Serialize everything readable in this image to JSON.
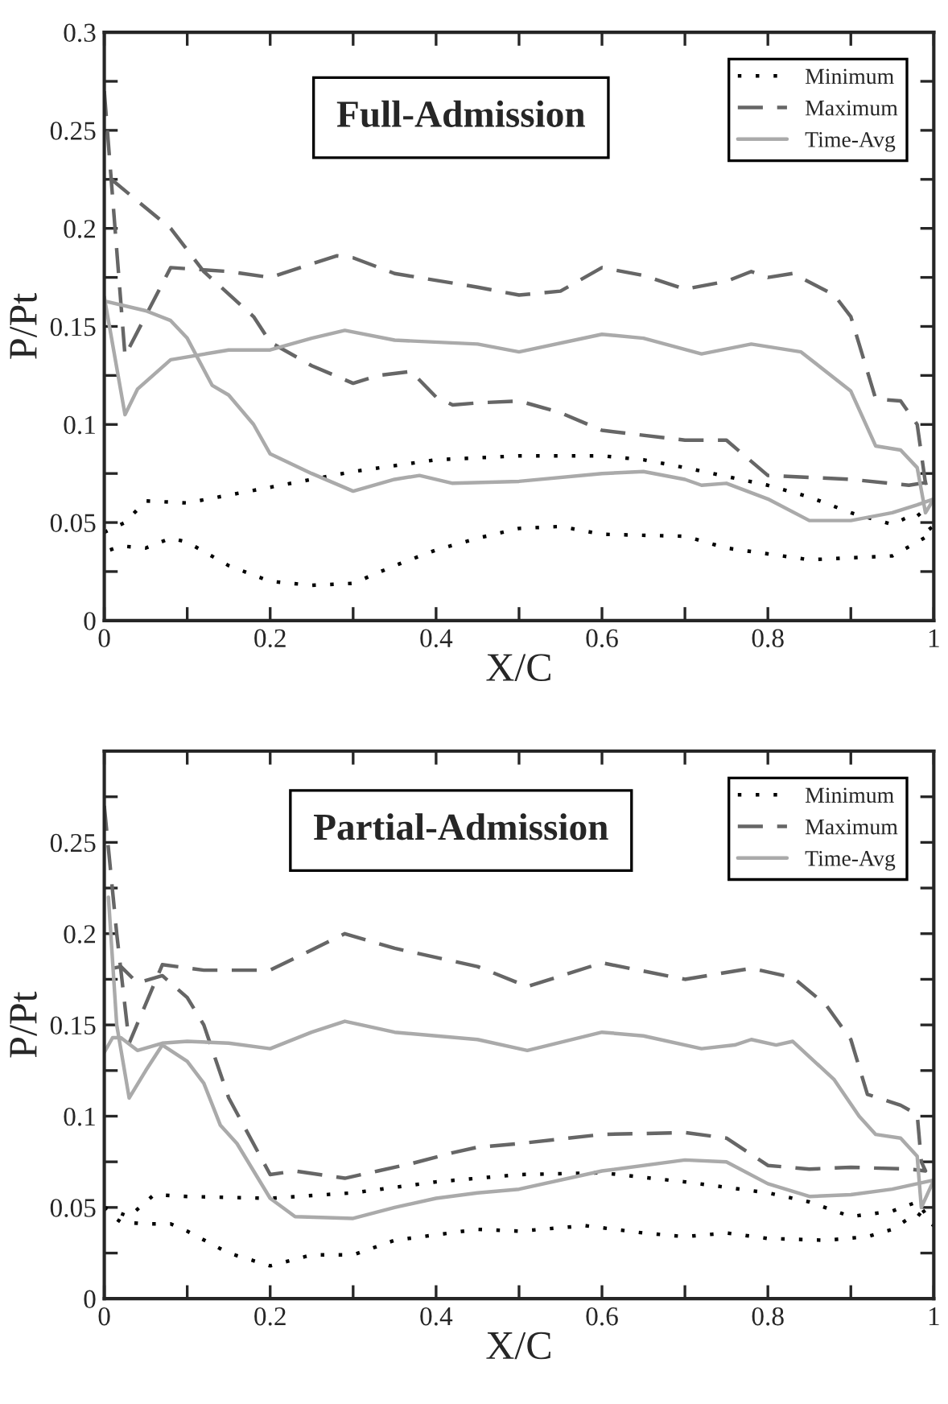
{
  "chart_data": [
    {
      "type": "line",
      "annotations": [
        "Full-Admission"
      ],
      "xlabel": "X/C",
      "ylabel": "P/Pt",
      "legend": "top right",
      "marker": "none",
      "grid": false,
      "xlim": [
        0,
        1
      ],
      "xticks": [
        0,
        {
          "value": 0.1,
          "label": null
        },
        0.2,
        {
          "value": 0.3,
          "label": null
        },
        0.4,
        {
          "value": 0.5,
          "label": null
        },
        0.6,
        {
          "value": 0.7,
          "label": null
        },
        0.8,
        {
          "value": 0.9,
          "label": null
        },
        1
      ],
      "ylim": [
        0,
        0.3
      ],
      "yticks": [
        0,
        {
          "value": 0.025,
          "label": null
        },
        0.05,
        {
          "value": 0.075,
          "label": null
        },
        0.1,
        {
          "value": 0.125,
          "label": null
        },
        0.15,
        {
          "value": 0.175,
          "label": null
        },
        0.2,
        {
          "value": 0.225,
          "label": null
        },
        0.25,
        {
          "value": 0.275,
          "label": null
        },
        0.3
      ],
      "series": [
        {
          "name": "Minimum",
          "color": "#000000",
          "line_style": "dotted",
          "x": [
            0,
            0.025,
            0.05,
            0.1,
            0.2,
            0.3,
            0.4,
            0.5,
            0.6,
            0.65,
            0.7,
            0.8,
            0.85,
            0.9,
            0.95,
            0.98,
            1,
            0.98,
            0.95,
            0.9,
            0.85,
            0.8,
            0.75,
            0.7,
            0.6,
            0.55,
            0.5,
            0.45,
            0.4,
            0.35,
            0.3,
            0.25,
            0.2,
            0.15,
            0.1,
            0.08,
            0.05,
            0.02,
            0
          ],
          "values": [
            0.045,
            0.05,
            0.061,
            0.06,
            0.068,
            0.076,
            0.082,
            0.084,
            0.084,
            0.082,
            0.078,
            0.069,
            0.063,
            0.055,
            0.049,
            0.055,
            0.045,
            0.04,
            0.033,
            0.032,
            0.031,
            0.034,
            0.037,
            0.043,
            0.044,
            0.048,
            0.047,
            0.042,
            0.036,
            0.028,
            0.019,
            0.018,
            0.02,
            0.028,
            0.04,
            0.042,
            0.037,
            0.038,
            0.035
          ]
        },
        {
          "name": "Maximum",
          "color": "#666666",
          "line_style": "dashed",
          "x": [
            0,
            0.025,
            0.08,
            0.15,
            0.2,
            0.28,
            0.3,
            0.35,
            0.45,
            0.5,
            0.55,
            0.6,
            0.65,
            0.7,
            0.75,
            0.78,
            0.8,
            0.83,
            0.88,
            0.9,
            0.93,
            0.96,
            0.98,
            0.99,
            1,
            0.97,
            0.9,
            0.8,
            0.75,
            0.7,
            0.6,
            0.55,
            0.5,
            0.45,
            0.42,
            0.4,
            0.37,
            0.33,
            0.3,
            0.25,
            0.2,
            0.18,
            0.12,
            0.08,
            0
          ],
          "values": [
            0.27,
            0.135,
            0.18,
            0.178,
            0.175,
            0.186,
            0.185,
            0.177,
            0.17,
            0.166,
            0.168,
            0.18,
            0.176,
            0.169,
            0.173,
            0.178,
            0.175,
            0.177,
            0.166,
            0.155,
            0.113,
            0.112,
            0.1,
            0.07,
            0.071,
            0.069,
            0.072,
            0.074,
            0.092,
            0.092,
            0.097,
            0.106,
            0.112,
            0.111,
            0.11,
            0.114,
            0.127,
            0.125,
            0.121,
            0.13,
            0.142,
            0.155,
            0.178,
            0.2,
            0.228
          ]
        },
        {
          "name": "Time-Avg",
          "color": "#aaaaaa",
          "line_style": "solid",
          "x": [
            0,
            0.025,
            0.04,
            0.08,
            0.15,
            0.2,
            0.25,
            0.29,
            0.35,
            0.45,
            0.5,
            0.6,
            0.65,
            0.72,
            0.78,
            0.84,
            0.9,
            0.93,
            0.96,
            0.98,
            0.99,
            1,
            0.98,
            0.95,
            0.9,
            0.85,
            0.8,
            0.75,
            0.72,
            0.7,
            0.65,
            0.6,
            0.5,
            0.42,
            0.38,
            0.35,
            0.3,
            0.25,
            0.2,
            0.18,
            0.15,
            0.13,
            0.1,
            0.08,
            0.05,
            0
          ],
          "values": [
            0.165,
            0.105,
            0.118,
            0.133,
            0.138,
            0.138,
            0.144,
            0.148,
            0.143,
            0.141,
            0.137,
            0.146,
            0.144,
            0.136,
            0.141,
            0.137,
            0.117,
            0.089,
            0.087,
            0.078,
            0.055,
            0.062,
            0.059,
            0.055,
            0.051,
            0.051,
            0.062,
            0.07,
            0.069,
            0.072,
            0.076,
            0.075,
            0.071,
            0.07,
            0.074,
            0.072,
            0.066,
            0.075,
            0.085,
            0.1,
            0.115,
            0.12,
            0.144,
            0.153,
            0.158,
            0.163
          ]
        }
      ]
    },
    {
      "type": "line",
      "annotations": [
        "Partial-Admission"
      ],
      "xlabel": "X/C",
      "ylabel": "P/Pt",
      "legend": "top right",
      "marker": "none",
      "grid": false,
      "xlim": [
        0,
        1
      ],
      "xticks": [
        0,
        {
          "value": 0.1,
          "label": null
        },
        0.2,
        {
          "value": 0.3,
          "label": null
        },
        0.4,
        {
          "value": 0.5,
          "label": null
        },
        0.6,
        {
          "value": 0.7,
          "label": null
        },
        0.8,
        {
          "value": 0.9,
          "label": null
        },
        1
      ],
      "ylim": [
        0,
        0.3
      ],
      "yticks": [
        0,
        {
          "value": 0.025,
          "label": null
        },
        0.05,
        {
          "value": 0.075,
          "label": null
        },
        0.1,
        {
          "value": 0.125,
          "label": null
        },
        0.15,
        {
          "value": 0.175,
          "label": null
        },
        0.2,
        {
          "value": 0.225,
          "label": null
        },
        0.25,
        {
          "value": 0.275,
          "label": null
        },
        {
          "value": 0.3,
          "label": null
        }
      ],
      "series": [
        {
          "name": "Minimum",
          "color": "#000000",
          "line_style": "dotted",
          "x": [
            0,
            0.03,
            0.06,
            0.1,
            0.2,
            0.3,
            0.4,
            0.5,
            0.6,
            0.7,
            0.8,
            0.85,
            0.9,
            0.95,
            0.98,
            1,
            0.98,
            0.95,
            0.92,
            0.87,
            0.8,
            0.75,
            0.7,
            0.65,
            0.58,
            0.5,
            0.45,
            0.4,
            0.35,
            0.3,
            0.25,
            0.2,
            0.15,
            0.1,
            0.08,
            0.05,
            0.02,
            0
          ],
          "values": [
            0.05,
            0.045,
            0.057,
            0.056,
            0.055,
            0.058,
            0.064,
            0.068,
            0.069,
            0.064,
            0.058,
            0.053,
            0.045,
            0.048,
            0.053,
            0.04,
            0.047,
            0.038,
            0.034,
            0.032,
            0.033,
            0.036,
            0.034,
            0.036,
            0.04,
            0.037,
            0.038,
            0.035,
            0.032,
            0.024,
            0.024,
            0.018,
            0.025,
            0.037,
            0.041,
            0.041,
            0.042,
            0.048
          ]
        },
        {
          "name": "Maximum",
          "color": "#666666",
          "line_style": "dashed",
          "x": [
            0,
            0.015,
            0.03,
            0.07,
            0.12,
            0.2,
            0.29,
            0.35,
            0.45,
            0.51,
            0.6,
            0.7,
            0.78,
            0.83,
            0.87,
            0.9,
            0.92,
            0.96,
            0.98,
            0.985,
            0.99,
            0.97,
            0.9,
            0.85,
            0.8,
            0.75,
            0.7,
            0.6,
            0.5,
            0.45,
            0.42,
            0.37,
            0.33,
            0.29,
            0.23,
            0.2,
            0.15,
            0.12,
            0.1,
            0.07,
            0.04,
            0.02,
            0
          ],
          "values": [
            0.27,
            0.2,
            0.14,
            0.183,
            0.18,
            0.18,
            0.2,
            0.192,
            0.182,
            0.171,
            0.184,
            0.175,
            0.181,
            0.176,
            0.161,
            0.142,
            0.112,
            0.106,
            0.101,
            0.075,
            0.07,
            0.071,
            0.072,
            0.071,
            0.073,
            0.088,
            0.091,
            0.09,
            0.085,
            0.083,
            0.08,
            0.074,
            0.07,
            0.066,
            0.07,
            0.068,
            0.11,
            0.15,
            0.165,
            0.177,
            0.173,
            0.182,
            0.18
          ]
        },
        {
          "name": "Time-Avg",
          "color": "#aaaaaa",
          "line_style": "solid",
          "x": [
            0,
            0.01,
            0.02,
            0.04,
            0.07,
            0.1,
            0.15,
            0.2,
            0.25,
            0.29,
            0.35,
            0.45,
            0.51,
            0.6,
            0.65,
            0.72,
            0.76,
            0.78,
            0.81,
            0.83,
            0.88,
            0.91,
            0.93,
            0.96,
            0.98,
            0.985,
            1,
            0.98,
            0.95,
            0.9,
            0.85,
            0.8,
            0.75,
            0.7,
            0.6,
            0.5,
            0.45,
            0.4,
            0.35,
            0.3,
            0.23,
            0.2,
            0.16,
            0.14,
            0.12,
            0.1,
            0.07,
            0.05,
            0.03,
            0.015,
            0.005
          ],
          "values": [
            0.135,
            0.143,
            0.143,
            0.136,
            0.14,
            0.141,
            0.14,
            0.137,
            0.146,
            0.152,
            0.146,
            0.142,
            0.136,
            0.146,
            0.144,
            0.137,
            0.139,
            0.142,
            0.139,
            0.141,
            0.12,
            0.1,
            0.09,
            0.088,
            0.078,
            0.05,
            0.065,
            0.063,
            0.06,
            0.057,
            0.056,
            0.063,
            0.075,
            0.076,
            0.07,
            0.06,
            0.058,
            0.055,
            0.05,
            0.044,
            0.045,
            0.055,
            0.085,
            0.095,
            0.118,
            0.13,
            0.139,
            0.125,
            0.11,
            0.15,
            0.22
          ]
        }
      ]
    }
  ]
}
